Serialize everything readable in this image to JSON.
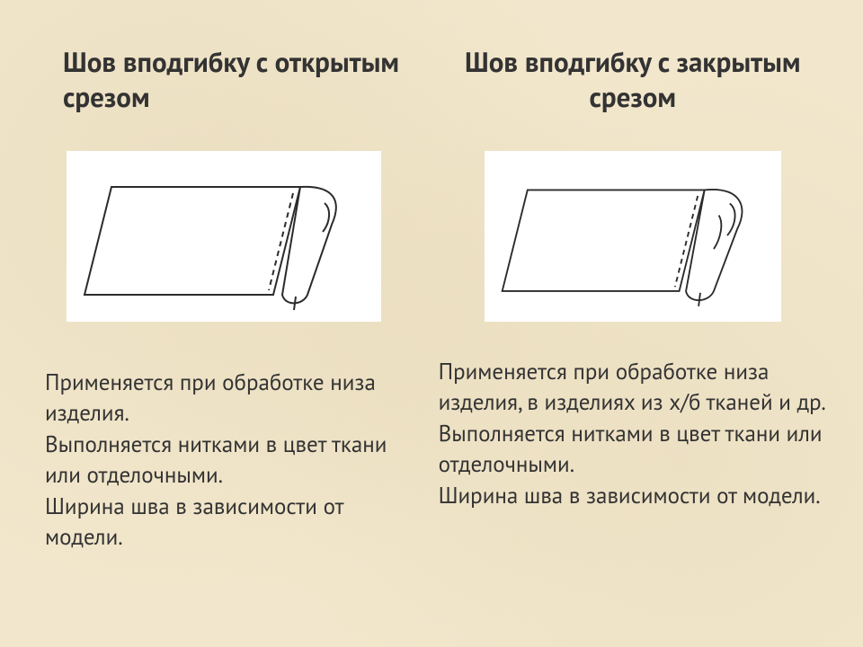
{
  "background_color": "#f2e7cc",
  "text_color": "#333333",
  "title_fontsize": 31,
  "body_fontsize": 25,
  "diagram": {
    "bg": "#ffffff",
    "stroke": "#2b2b2b",
    "stroke_width": 2,
    "dash": "6,5"
  },
  "left": {
    "title": "Шов вподгибку с открытым срезом",
    "body": "Применяется при обработке низа изделия.\nВыполняется нитками в цвет ткани или отделочными.\nШирина шва в зависимости от модели."
  },
  "right": {
    "title": "Шов вподгибку  с закрытым  срезом",
    "body": "Применяется при обработке низа изделия, в изделиях из х/б тканей и др.\nВыполняется нитками в цвет ткани или отделочными.\nШирина шва в зависимости от модели."
  }
}
